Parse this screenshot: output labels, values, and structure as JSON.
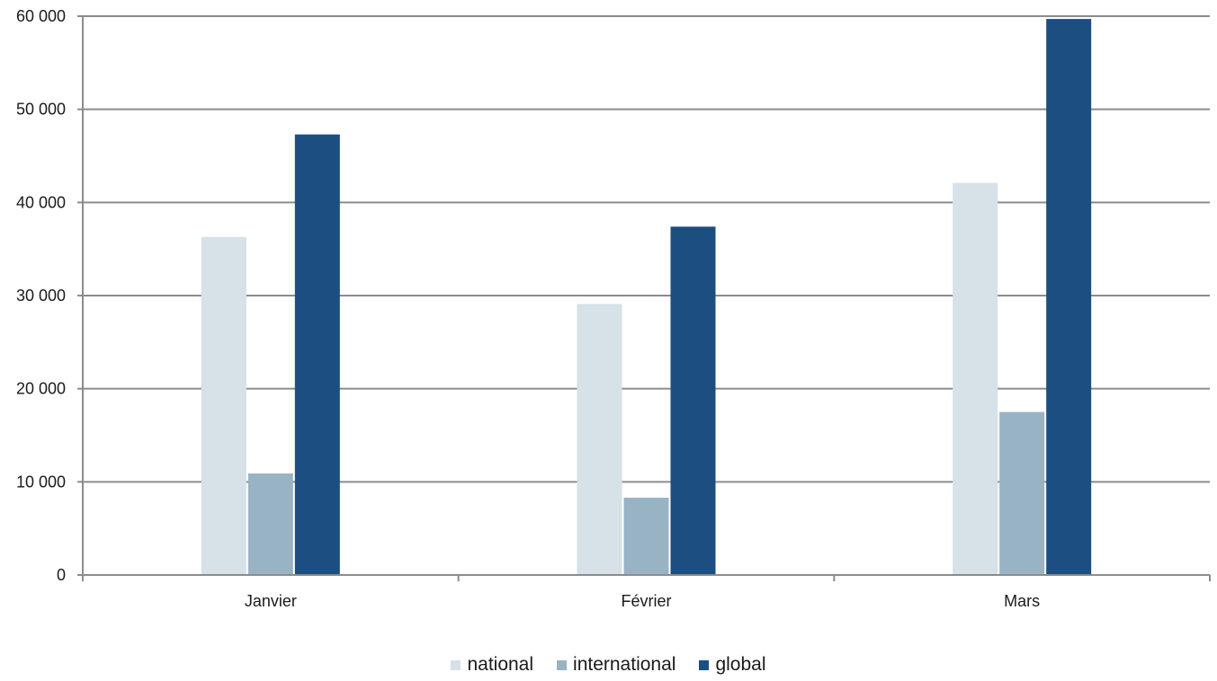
{
  "chart_data": {
    "type": "bar",
    "categories": [
      "Janvier",
      "Février",
      "Mars"
    ],
    "series": [
      {
        "name": "national",
        "values": [
          36300,
          29100,
          42100
        ],
        "color": "#d6e1e8"
      },
      {
        "name": "international",
        "values": [
          10900,
          8300,
          17500
        ],
        "color": "#98b4c4"
      },
      {
        "name": "global",
        "values": [
          47300,
          37400,
          59700
        ],
        "color": "#1c4e82"
      }
    ],
    "ylim": [
      0,
      60000
    ],
    "yticks": [
      0,
      10000,
      20000,
      30000,
      40000,
      50000,
      60000
    ],
    "ytick_labels": [
      "0",
      "10 000",
      "20 000",
      "30 000",
      "40 000",
      "50 000",
      "60 000"
    ],
    "title": "",
    "xlabel": "",
    "ylabel": "",
    "grid": true,
    "legend_position": "bottom"
  }
}
